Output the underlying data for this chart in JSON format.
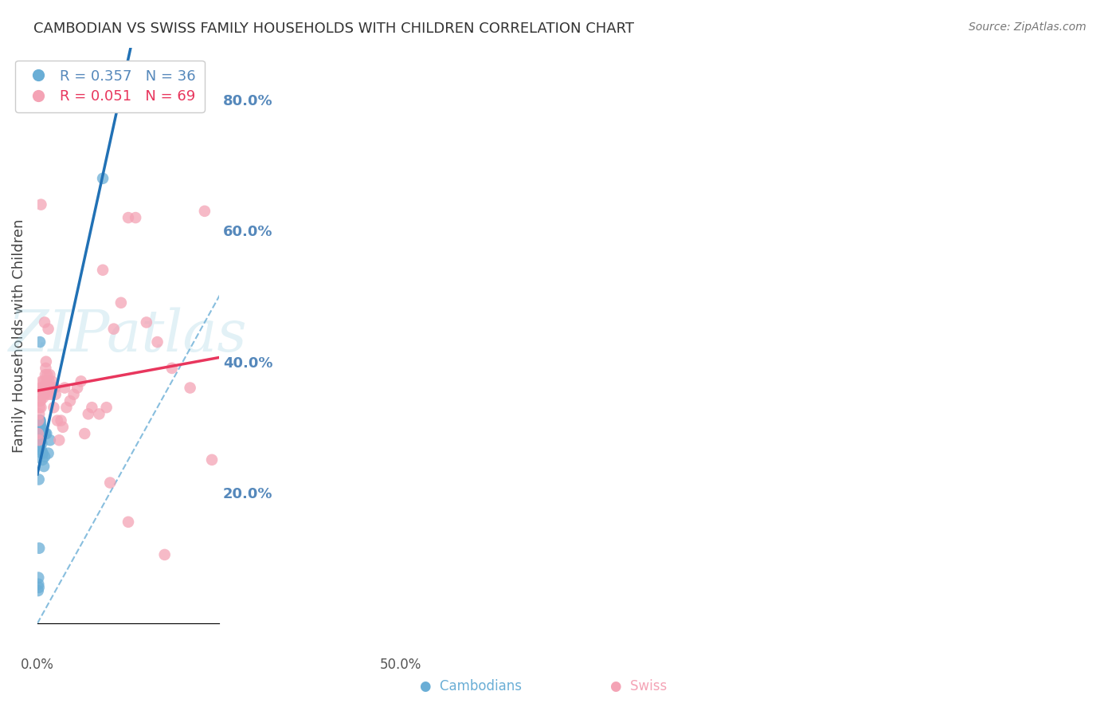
{
  "title": "CAMBODIAN VS SWISS FAMILY HOUSEHOLDS WITH CHILDREN CORRELATION CHART",
  "source": "Source: ZipAtlas.com",
  "ylabel": "Family Households with Children",
  "watermark": "ZIPatlas",
  "xlim": [
    0.0,
    0.5
  ],
  "ylim": [
    0.0,
    0.88
  ],
  "yticks": [
    0.2,
    0.4,
    0.6,
    0.8
  ],
  "ytick_labels": [
    "20.0%",
    "40.0%",
    "60.0%",
    "80.0%"
  ],
  "legend_cambodian": "R = 0.357   N = 36",
  "legend_swiss": "R = 0.051   N = 69",
  "color_cambodian": "#6aaed6",
  "color_swiss": "#f4a3b5",
  "trend_cambodian": "#2171b5",
  "trend_swiss": "#e8365d",
  "diagonal_color": "#6aaed6",
  "background": "#ffffff",
  "grid_color": "#cccccc",
  "title_color": "#333333",
  "axis_color": "#5588bb",
  "cambodian_x": [
    0.002,
    0.003,
    0.003,
    0.004,
    0.004,
    0.005,
    0.005,
    0.005,
    0.006,
    0.006,
    0.006,
    0.007,
    0.007,
    0.008,
    0.008,
    0.008,
    0.009,
    0.009,
    0.01,
    0.01,
    0.011,
    0.011,
    0.012,
    0.013,
    0.014,
    0.015,
    0.016,
    0.018,
    0.02,
    0.022,
    0.025,
    0.03,
    0.035,
    0.18,
    0.005,
    0.007
  ],
  "cambodian_y": [
    0.05,
    0.06,
    0.07,
    0.055,
    0.22,
    0.27,
    0.29,
    0.3,
    0.31,
    0.285,
    0.295,
    0.3,
    0.31,
    0.3,
    0.29,
    0.31,
    0.295,
    0.305,
    0.28,
    0.3,
    0.265,
    0.29,
    0.275,
    0.26,
    0.25,
    0.26,
    0.29,
    0.24,
    0.255,
    0.29,
    0.29,
    0.26,
    0.28,
    0.68,
    0.115,
    0.43
  ],
  "swiss_x": [
    0.002,
    0.003,
    0.004,
    0.005,
    0.006,
    0.007,
    0.008,
    0.009,
    0.01,
    0.011,
    0.012,
    0.013,
    0.014,
    0.015,
    0.016,
    0.017,
    0.018,
    0.019,
    0.02,
    0.021,
    0.022,
    0.023,
    0.024,
    0.025,
    0.026,
    0.027,
    0.028,
    0.03,
    0.032,
    0.034,
    0.036,
    0.038,
    0.04,
    0.042,
    0.045,
    0.048,
    0.05,
    0.055,
    0.06,
    0.065,
    0.07,
    0.075,
    0.08,
    0.09,
    0.1,
    0.11,
    0.12,
    0.13,
    0.14,
    0.15,
    0.17,
    0.19,
    0.21,
    0.23,
    0.25,
    0.27,
    0.3,
    0.33,
    0.37,
    0.42,
    0.46,
    0.48,
    0.01,
    0.02,
    0.03,
    0.18,
    0.2,
    0.25,
    0.35
  ],
  "swiss_y": [
    0.29,
    0.31,
    0.28,
    0.32,
    0.33,
    0.34,
    0.36,
    0.34,
    0.33,
    0.35,
    0.36,
    0.37,
    0.355,
    0.36,
    0.345,
    0.355,
    0.37,
    0.355,
    0.35,
    0.36,
    0.38,
    0.39,
    0.4,
    0.365,
    0.37,
    0.38,
    0.36,
    0.35,
    0.37,
    0.38,
    0.36,
    0.35,
    0.37,
    0.36,
    0.33,
    0.36,
    0.35,
    0.31,
    0.28,
    0.31,
    0.3,
    0.36,
    0.33,
    0.34,
    0.35,
    0.36,
    0.37,
    0.29,
    0.32,
    0.33,
    0.32,
    0.33,
    0.45,
    0.49,
    0.62,
    0.62,
    0.46,
    0.43,
    0.39,
    0.36,
    0.63,
    0.25,
    0.64,
    0.46,
    0.45,
    0.54,
    0.215,
    0.155,
    0.105
  ]
}
